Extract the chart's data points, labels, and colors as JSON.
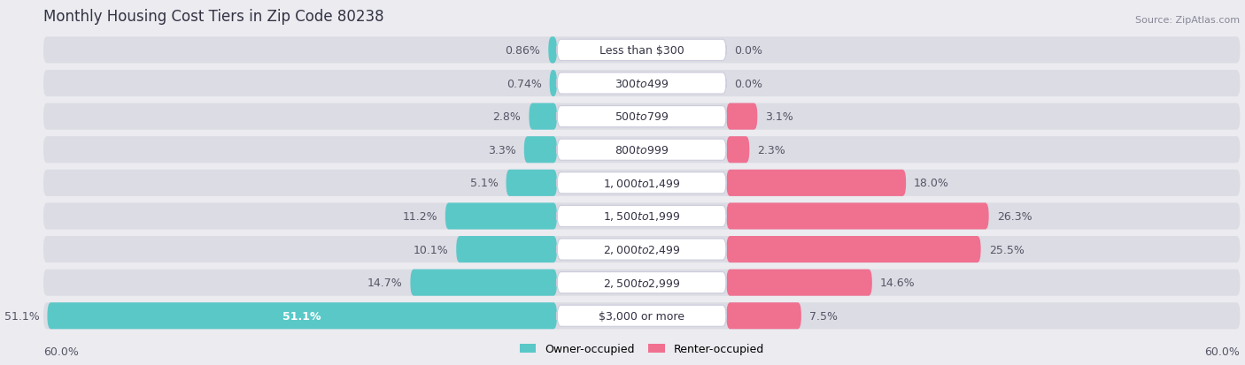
{
  "title": "Monthly Housing Cost Tiers in Zip Code 80238",
  "source": "Source: ZipAtlas.com",
  "categories": [
    "Less than $300",
    "$300 to $499",
    "$500 to $799",
    "$800 to $999",
    "$1,000 to $1,499",
    "$1,500 to $1,999",
    "$2,000 to $2,499",
    "$2,500 to $2,999",
    "$3,000 or more"
  ],
  "owner_values": [
    0.86,
    0.74,
    2.8,
    3.3,
    5.1,
    11.2,
    10.1,
    14.7,
    51.1
  ],
  "renter_values": [
    0.0,
    0.0,
    3.1,
    2.3,
    18.0,
    26.3,
    25.5,
    14.6,
    7.5
  ],
  "owner_color": "#5BC8C8",
  "renter_color": "#F07090",
  "owner_label": "Owner-occupied",
  "renter_label": "Renter-occupied",
  "xlim": 60.0,
  "axis_label_left": "60.0%",
  "axis_label_right": "60.0%",
  "background_color": "#ebebf0",
  "bar_bg_color": "#dcdce4",
  "title_fontsize": 12,
  "bar_label_fontsize": 9,
  "category_fontsize": 9,
  "value_label_fontsize": 9
}
